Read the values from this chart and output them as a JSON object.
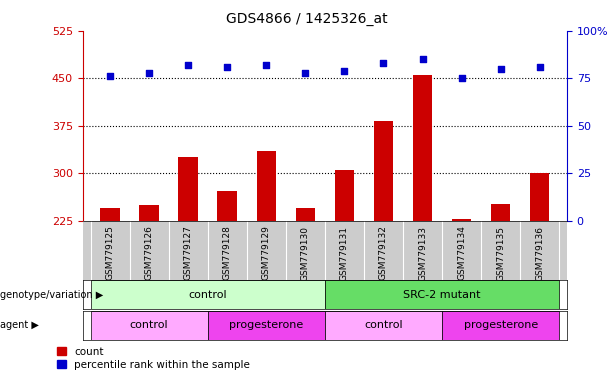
{
  "title": "GDS4866 / 1425326_at",
  "samples": [
    "GSM779125",
    "GSM779126",
    "GSM779127",
    "GSM779128",
    "GSM779129",
    "GSM779130",
    "GSM779131",
    "GSM779132",
    "GSM779133",
    "GSM779134",
    "GSM779135",
    "GSM779136"
  ],
  "count_values": [
    245,
    250,
    325,
    272,
    335,
    245,
    305,
    383,
    455,
    228,
    252,
    300
  ],
  "percentile_values": [
    76,
    78,
    82,
    81,
    82,
    78,
    79,
    83,
    85,
    75,
    80,
    81
  ],
  "count_color": "#cc0000",
  "percentile_color": "#0000cc",
  "ylim_left": [
    225,
    525
  ],
  "ylim_right": [
    0,
    100
  ],
  "yticks_left": [
    225,
    300,
    375,
    450,
    525
  ],
  "yticks_right": [
    0,
    25,
    50,
    75,
    100
  ],
  "yticklabels_right": [
    "0",
    "25",
    "50",
    "75",
    "100%"
  ],
  "hlines": [
    300,
    375,
    450
  ],
  "genotype_groups": [
    {
      "label": "control",
      "start": 0,
      "end": 5,
      "color": "#ccffcc"
    },
    {
      "label": "SRC-2 mutant",
      "start": 6,
      "end": 11,
      "color": "#66dd66"
    }
  ],
  "agent_groups": [
    {
      "label": "control",
      "start": 0,
      "end": 2,
      "color": "#ffaaff"
    },
    {
      "label": "progesterone",
      "start": 3,
      "end": 5,
      "color": "#ee44ee"
    },
    {
      "label": "control",
      "start": 6,
      "end": 8,
      "color": "#ffaaff"
    },
    {
      "label": "progesterone",
      "start": 9,
      "end": 11,
      "color": "#ee44ee"
    }
  ],
  "legend_count_label": "count",
  "legend_percentile_label": "percentile rank within the sample",
  "genotype_row_label": "genotype/variation",
  "agent_row_label": "agent",
  "bg_color": "#ffffff",
  "xtick_bg_color": "#cccccc",
  "bar_width": 0.5
}
